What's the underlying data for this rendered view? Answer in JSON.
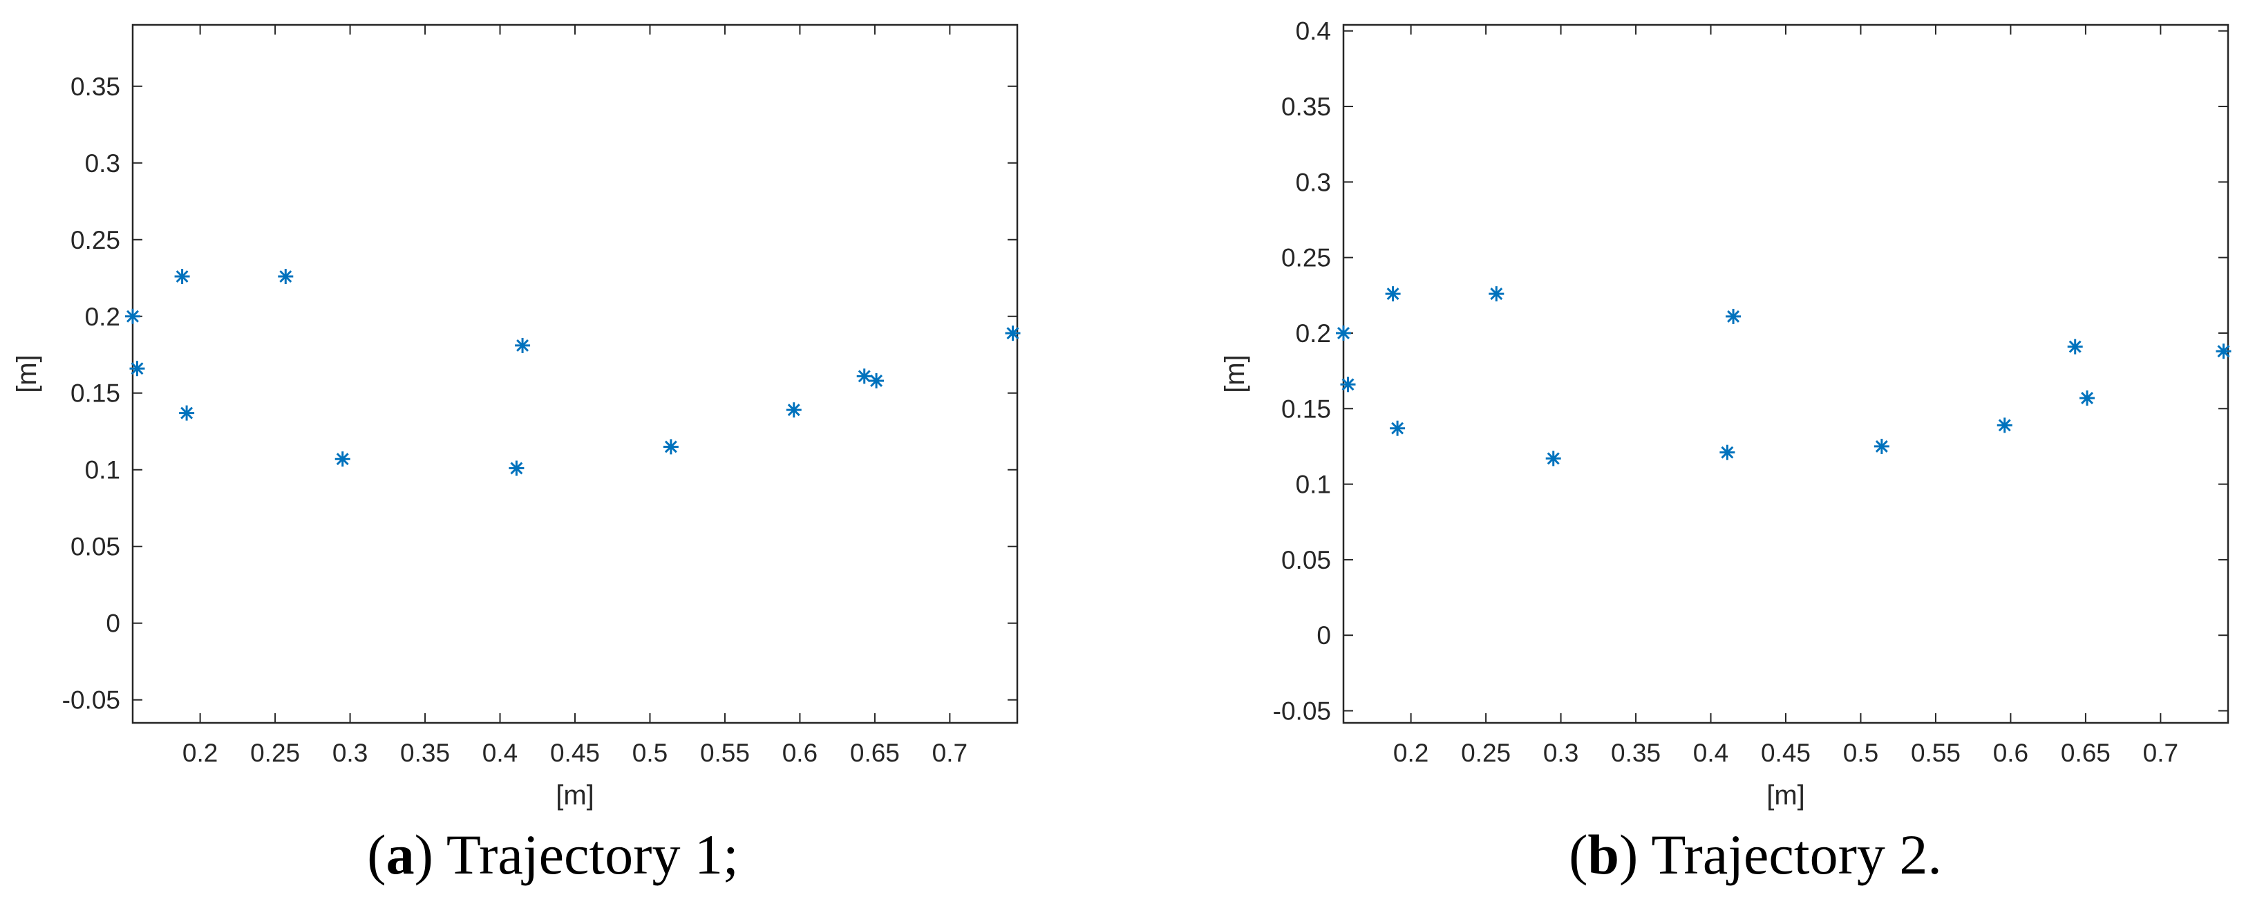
{
  "colors": {
    "marker": "#0072BD",
    "axis": "#262626",
    "background": "#ffffff"
  },
  "chart_data": [
    {
      "type": "scatter",
      "xlabel": "[m]",
      "ylabel": "[m]",
      "xlim": [
        0.155,
        0.745
      ],
      "ylim": [
        -0.065,
        0.39
      ],
      "xticks": [
        0.2,
        0.25,
        0.3,
        0.35,
        0.4,
        0.45,
        0.5,
        0.55,
        0.6,
        0.65,
        0.7
      ],
      "xtick_labels": [
        "0.2",
        "0.25",
        "0.3",
        "0.35",
        "0.4",
        "0.45",
        "0.5",
        "0.55",
        "0.6",
        "0.65",
        "0.7"
      ],
      "yticks": [
        -0.05,
        0,
        0.05,
        0.1,
        0.15,
        0.2,
        0.25,
        0.3,
        0.35
      ],
      "ytick_labels": [
        "-0.05",
        "0",
        "0.05",
        "0.1",
        "0.15",
        "0.2",
        "0.25",
        "0.3",
        "0.35"
      ],
      "marker": "*",
      "grid": false,
      "caption": {
        "letter": "a",
        "text": "Trajectory 1;"
      },
      "series": [
        {
          "name": "points",
          "x": [
            0.155,
            0.158,
            0.188,
            0.191,
            0.257,
            0.295,
            0.411,
            0.415,
            0.514,
            0.596,
            0.643,
            0.651,
            0.742
          ],
          "y": [
            0.2,
            0.166,
            0.226,
            0.137,
            0.226,
            0.107,
            0.101,
            0.181,
            0.115,
            0.139,
            0.161,
            0.158,
            0.189
          ]
        }
      ]
    },
    {
      "type": "scatter",
      "xlabel": "[m]",
      "ylabel": "[m]",
      "xlim": [
        0.155,
        0.745
      ],
      "ylim": [
        -0.058,
        0.404
      ],
      "xticks": [
        0.2,
        0.25,
        0.3,
        0.35,
        0.4,
        0.45,
        0.5,
        0.55,
        0.6,
        0.65,
        0.7
      ],
      "xtick_labels": [
        "0.2",
        "0.25",
        "0.3",
        "0.35",
        "0.4",
        "0.45",
        "0.5",
        "0.55",
        "0.6",
        "0.65",
        "0.7"
      ],
      "yticks": [
        -0.05,
        0,
        0.05,
        0.1,
        0.15,
        0.2,
        0.25,
        0.3,
        0.35,
        0.4
      ],
      "ytick_labels": [
        "-0.05",
        "0",
        "0.05",
        "0.1",
        "0.15",
        "0.2",
        "0.25",
        "0.3",
        "0.35",
        "0.4"
      ],
      "marker": "*",
      "grid": false,
      "caption": {
        "letter": "b",
        "text": "Trajectory 2."
      },
      "series": [
        {
          "name": "points",
          "x": [
            0.155,
            0.158,
            0.188,
            0.191,
            0.257,
            0.295,
            0.411,
            0.415,
            0.514,
            0.596,
            0.643,
            0.651,
            0.742
          ],
          "y": [
            0.2,
            0.166,
            0.226,
            0.137,
            0.226,
            0.117,
            0.121,
            0.211,
            0.125,
            0.139,
            0.191,
            0.157,
            0.188
          ]
        }
      ]
    }
  ]
}
